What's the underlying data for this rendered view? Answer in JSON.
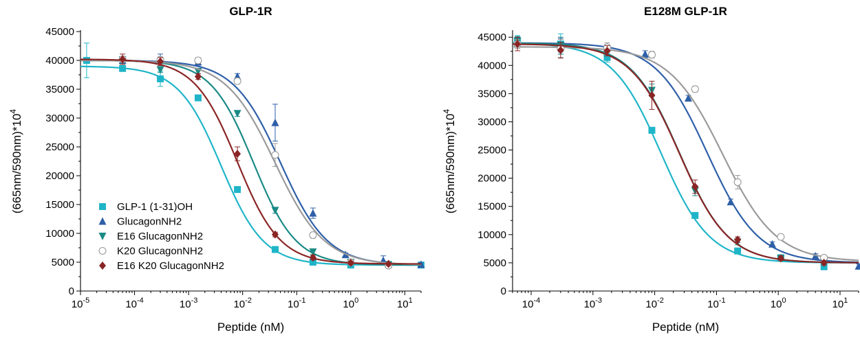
{
  "chart_data": [
    {
      "type": "scatter",
      "title": "GLP-1R",
      "xlabel": "Peptide (nM)",
      "ylabel": "(665nm/590nm)*10^4",
      "xscale": "log",
      "xlim": [
        1e-05,
        20
      ],
      "ylim": [
        0,
        45000
      ],
      "yticks": [
        0,
        5000,
        10000,
        15000,
        20000,
        25000,
        30000,
        35000,
        40000,
        45000
      ],
      "xtick_exponents": [
        -5,
        -4,
        -3,
        -2,
        -1,
        0,
        1
      ],
      "legend_position": "lower-left",
      "grid": false,
      "series": [
        {
          "name": "GLP-1 (1-31)OH",
          "color": "#1fb5c8",
          "marker": "square",
          "x": [
            1.3e-05,
            6e-05,
            0.0003,
            0.0015,
            0.008,
            0.04,
            0.2,
            1.0,
            5.0,
            20.0
          ],
          "y": [
            40000,
            38600,
            36800,
            33500,
            17600,
            7200,
            5000,
            4500,
            4600,
            4500
          ],
          "err": [
            3000,
            500,
            1300,
            500,
            500,
            400,
            400,
            500,
            300,
            300
          ],
          "fit": {
            "bottom": 4500,
            "top": 39000,
            "logEC50": -2.4,
            "hill": 1.1
          }
        },
        {
          "name": "GlucagonNH2",
          "color": "#2e5fa8",
          "marker": "triangle-up",
          "x": [
            6e-05,
            0.0003,
            0.0015,
            0.008,
            0.04,
            0.2,
            0.8,
            4.0,
            20.0
          ],
          "y": [
            40000,
            40100,
            39700,
            37200,
            29200,
            13500,
            6300,
            5300,
            4600
          ],
          "err": [
            500,
            1000,
            500,
            500,
            3200,
            900,
            300,
            800,
            300
          ],
          "fit": {
            "bottom": 4500,
            "top": 40000,
            "logEC50": -1.3,
            "hill": 1.0
          }
        },
        {
          "name": "E16 GlucagonNH2",
          "color": "#1a8a85",
          "marker": "triangle-down",
          "x": [
            6e-05,
            0.0003,
            0.0015,
            0.008,
            0.04,
            0.2,
            1.0,
            5.0
          ],
          "y": [
            40100,
            38400,
            38100,
            30800,
            14000,
            6800,
            5000,
            4500
          ],
          "err": [
            500,
            500,
            400,
            500,
            500,
            500,
            400,
            300
          ],
          "fit": {
            "bottom": 4500,
            "top": 40000,
            "logEC50": -1.8,
            "hill": 1.1
          }
        },
        {
          "name": "K20 GlucagonNH2",
          "color": "#9a9a9a",
          "marker": "circle-open",
          "x": [
            6e-05,
            0.0003,
            0.0015,
            0.008,
            0.04,
            0.2,
            1.0,
            5.0
          ],
          "y": [
            40200,
            40100,
            40000,
            36400,
            23600,
            9700,
            5000,
            4400
          ],
          "err": [
            500,
            500,
            500,
            500,
            2000,
            500,
            400,
            300
          ],
          "fit": {
            "bottom": 4500,
            "top": 40000,
            "logEC50": -1.4,
            "hill": 0.95
          }
        },
        {
          "name": "E16 K20 GlucagonNH2",
          "color": "#8b2525",
          "marker": "diamond",
          "x": [
            6e-05,
            0.0003,
            0.0015,
            0.008,
            0.04,
            0.2,
            1.0,
            5.0
          ],
          "y": [
            40200,
            39800,
            37200,
            23800,
            9800,
            5800,
            4900,
            4700
          ],
          "err": [
            900,
            700,
            500,
            1200,
            400,
            400,
            300,
            300
          ],
          "fit": {
            "bottom": 4700,
            "top": 40200,
            "logEC50": -2.1,
            "hill": 1.1
          }
        }
      ]
    },
    {
      "type": "scatter",
      "title": "E128M GLP-1R",
      "xlabel": "Peptide (nM)",
      "ylabel": "(665nm/590nm)*10^4",
      "xscale": "log",
      "xlim": [
        5e-05,
        20
      ],
      "ylim": [
        0,
        46000
      ],
      "yticks": [
        0,
        5000,
        10000,
        15000,
        20000,
        25000,
        30000,
        35000,
        40000,
        45000
      ],
      "xtick_exponents": [
        -4,
        -3,
        -2,
        -1,
        0,
        1
      ],
      "grid": false,
      "series": [
        {
          "name": "GLP-1 (1-31)OH",
          "color": "#1fb5c8",
          "marker": "square",
          "x": [
            6e-05,
            0.0003,
            0.0017,
            0.009,
            0.045,
            0.22,
            1.1,
            5.5
          ],
          "y": [
            44400,
            43800,
            41400,
            28500,
            13400,
            7100,
            5900,
            4300
          ],
          "err": [
            900,
            1800,
            800,
            500,
            500,
            400,
            400,
            500
          ],
          "fit": {
            "bottom": 5000,
            "top": 44000,
            "logEC50": -1.9,
            "hill": 1.1
          }
        },
        {
          "name": "GlucagonNH2",
          "color": "#2e5fa8",
          "marker": "triangle-up",
          "x": [
            6e-05,
            0.0003,
            0.0017,
            0.007,
            0.035,
            0.17,
            0.8,
            4.0,
            20.0
          ],
          "y": [
            44500,
            43600,
            43100,
            42000,
            34200,
            15800,
            8300,
            6200,
            4400
          ],
          "err": [
            600,
            1200,
            600,
            600,
            500,
            500,
            400,
            400,
            400
          ],
          "fit": {
            "bottom": 5000,
            "top": 44000,
            "logEC50": -1.15,
            "hill": 1.05
          }
        },
        {
          "name": "E16 GlucagonNH2",
          "color": "#1a8a85",
          "marker": "triangle-down",
          "x": [
            6e-05,
            0.0003,
            0.0017,
            0.009,
            0.045,
            0.22,
            1.1,
            5.5
          ],
          "y": [
            44300,
            43500,
            42800,
            35600,
            17800,
            8700,
            5800,
            5100
          ],
          "err": [
            800,
            1500,
            800,
            1100,
            900,
            500,
            400,
            400
          ],
          "fit": {
            "bottom": 5000,
            "top": 44000,
            "logEC50": -1.6,
            "hill": 1.1
          }
        },
        {
          "name": "K20 GlucagonNH2",
          "color": "#9a9a9a",
          "marker": "circle-open",
          "x": [
            6e-05,
            0.0003,
            0.0017,
            0.009,
            0.045,
            0.22,
            1.1,
            5.5
          ],
          "y": [
            43800,
            43000,
            43200,
            41900,
            35800,
            19300,
            9600,
            5900
          ],
          "err": [
            800,
            1600,
            800,
            600,
            500,
            1200,
            400,
            400
          ],
          "fit": {
            "bottom": 5200,
            "top": 43300,
            "logEC50": -0.9,
            "hill": 1.0
          }
        },
        {
          "name": "E16 K20 GlucagonNH2",
          "color": "#8b2525",
          "marker": "diamond",
          "x": [
            6e-05,
            0.0003,
            0.0017,
            0.009,
            0.045,
            0.22,
            1.1,
            5.5
          ],
          "y": [
            43800,
            42700,
            42600,
            34700,
            18500,
            9100,
            5800,
            5000
          ],
          "err": [
            1200,
            1400,
            900,
            2500,
            1200,
            500,
            400,
            400
          ],
          "fit": {
            "bottom": 5000,
            "top": 43800,
            "logEC50": -1.6,
            "hill": 1.1
          }
        }
      ]
    }
  ]
}
